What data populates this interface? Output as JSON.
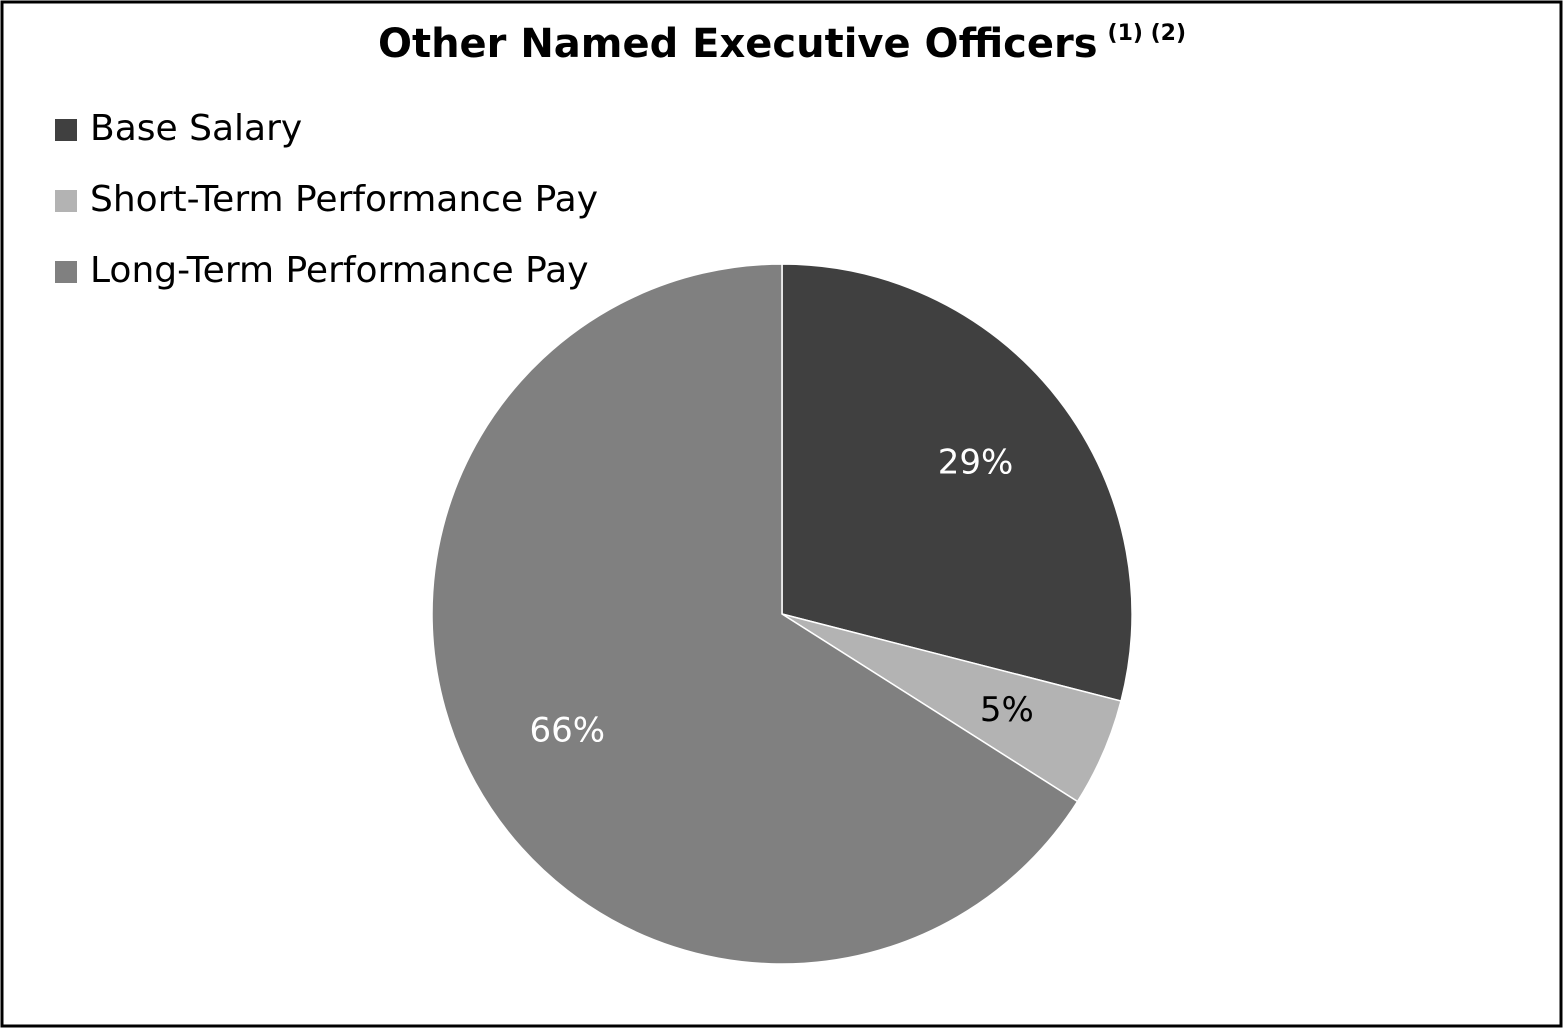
{
  "chart_data": {
    "type": "pie",
    "title": "Other Named Executive Officers",
    "title_superscript": "(1) (2)",
    "categories": [
      "Base Salary",
      "Short-Term Performance Pay",
      "Long-Term Performance Pay"
    ],
    "values": [
      29,
      5,
      66
    ],
    "value_labels": [
      "29%",
      "5%",
      "66%"
    ],
    "colors": [
      "#404040",
      "#b3b3b3",
      "#808080"
    ],
    "legend": "top-left"
  }
}
